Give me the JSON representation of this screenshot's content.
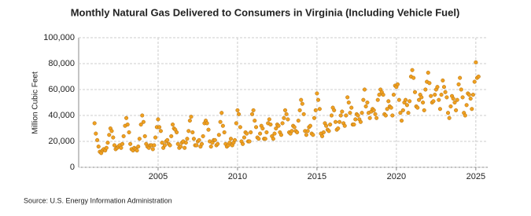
{
  "chart_data": {
    "type": "scatter",
    "title": "Monthly Natural Gas Delivered to Consumers in Virginia (Including Vehicle Fuel)",
    "y_label": "Million Cubic Feet",
    "source": "Source: U.S. Energy Information Administration",
    "color": "#f0a020",
    "grid": true,
    "xlim": [
      2000,
      2025.75
    ],
    "xticks": [
      2005,
      2010,
      2015,
      2020,
      2025
    ],
    "ylim": [
      0,
      100000
    ],
    "yticks": [
      0,
      {
        "value": 20000,
        "label": "20,000"
      },
      {
        "value": 40000,
        "label": "40,000"
      },
      {
        "value": 60000,
        "label": "60,000"
      },
      {
        "value": 80000,
        "label": "80,000"
      },
      {
        "value": 100000,
        "label": "100,000"
      }
    ],
    "x": [
      2001.0,
      2001.08,
      2001.17,
      2001.25,
      2001.33,
      2001.42,
      2001.5,
      2001.58,
      2001.67,
      2001.75,
      2001.83,
      2001.92,
      2002.0,
      2002.08,
      2002.17,
      2002.25,
      2002.33,
      2002.42,
      2002.5,
      2002.58,
      2002.67,
      2002.75,
      2002.83,
      2002.92,
      2003.0,
      2003.08,
      2003.17,
      2003.25,
      2003.33,
      2003.42,
      2003.5,
      2003.58,
      2003.67,
      2003.75,
      2003.83,
      2003.92,
      2004.0,
      2004.08,
      2004.17,
      2004.25,
      2004.33,
      2004.42,
      2004.5,
      2004.58,
      2004.67,
      2004.75,
      2004.83,
      2004.92,
      2005.0,
      2005.08,
      2005.17,
      2005.25,
      2005.33,
      2005.42,
      2005.5,
      2005.58,
      2005.67,
      2005.75,
      2005.83,
      2005.92,
      2006.0,
      2006.08,
      2006.17,
      2006.25,
      2006.33,
      2006.42,
      2006.5,
      2006.58,
      2006.67,
      2006.75,
      2006.83,
      2006.92,
      2007.0,
      2007.08,
      2007.17,
      2007.25,
      2007.33,
      2007.42,
      2007.5,
      2007.58,
      2007.67,
      2007.75,
      2007.83,
      2007.92,
      2008.0,
      2008.08,
      2008.17,
      2008.25,
      2008.33,
      2008.42,
      2008.5,
      2008.58,
      2008.67,
      2008.75,
      2008.83,
      2008.92,
      2009.0,
      2009.08,
      2009.17,
      2009.25,
      2009.33,
      2009.42,
      2009.5,
      2009.58,
      2009.67,
      2009.75,
      2009.83,
      2009.92,
      2010.0,
      2010.08,
      2010.17,
      2010.25,
      2010.33,
      2010.42,
      2010.5,
      2010.58,
      2010.67,
      2010.75,
      2010.83,
      2010.92,
      2011.0,
      2011.08,
      2011.17,
      2011.25,
      2011.33,
      2011.42,
      2011.5,
      2011.58,
      2011.67,
      2011.75,
      2011.83,
      2011.92,
      2012.0,
      2012.08,
      2012.17,
      2012.25,
      2012.33,
      2012.42,
      2012.5,
      2012.58,
      2012.67,
      2012.75,
      2012.83,
      2012.92,
      2013.0,
      2013.08,
      2013.17,
      2013.25,
      2013.33,
      2013.42,
      2013.5,
      2013.58,
      2013.67,
      2013.75,
      2013.83,
      2013.92,
      2014.0,
      2014.08,
      2014.17,
      2014.25,
      2014.33,
      2014.42,
      2014.5,
      2014.58,
      2014.67,
      2014.75,
      2014.83,
      2014.92,
      2015.0,
      2015.08,
      2015.17,
      2015.25,
      2015.33,
      2015.42,
      2015.5,
      2015.58,
      2015.67,
      2015.75,
      2015.83,
      2015.92,
      2016.0,
      2016.08,
      2016.17,
      2016.25,
      2016.33,
      2016.42,
      2016.5,
      2016.58,
      2016.67,
      2016.75,
      2016.83,
      2016.92,
      2017.0,
      2017.08,
      2017.17,
      2017.25,
      2017.33,
      2017.42,
      2017.5,
      2017.58,
      2017.67,
      2017.75,
      2017.83,
      2017.92,
      2018.0,
      2018.08,
      2018.17,
      2018.25,
      2018.33,
      2018.42,
      2018.5,
      2018.58,
      2018.67,
      2018.75,
      2018.83,
      2018.92,
      2019.0,
      2019.08,
      2019.17,
      2019.25,
      2019.33,
      2019.42,
      2019.5,
      2019.58,
      2019.67,
      2019.75,
      2019.83,
      2019.92,
      2020.0,
      2020.08,
      2020.17,
      2020.25,
      2020.33,
      2020.42,
      2020.5,
      2020.58,
      2020.67,
      2020.75,
      2020.83,
      2020.92,
      2021.0,
      2021.08,
      2021.17,
      2021.25,
      2021.33,
      2021.42,
      2021.5,
      2021.58,
      2021.67,
      2021.75,
      2021.83,
      2021.92,
      2022.0,
      2022.08,
      2022.17,
      2022.25,
      2022.33,
      2022.42,
      2022.5,
      2022.58,
      2022.67,
      2022.75,
      2022.83,
      2022.92,
      2023.0,
      2023.08,
      2023.17,
      2023.25,
      2023.33,
      2023.42,
      2023.5,
      2023.58,
      2023.67,
      2023.75,
      2023.83,
      2023.92,
      2024.0,
      2024.08,
      2024.17,
      2024.25,
      2024.33,
      2024.42,
      2024.5,
      2024.58,
      2024.67,
      2024.75,
      2024.83,
      2024.92,
      2025.0,
      2025.08,
      2025.17
    ],
    "values": [
      34000,
      26000,
      21000,
      16000,
      12000,
      11000,
      13000,
      14000,
      13000,
      15000,
      19000,
      25000,
      30000,
      28000,
      23000,
      17000,
      14000,
      15000,
      16000,
      17000,
      15000,
      18000,
      24000,
      32000,
      38000,
      33000,
      27000,
      18000,
      14000,
      13000,
      15000,
      14000,
      13000,
      16000,
      22000,
      33000,
      40000,
      35000,
      24000,
      18000,
      16000,
      15000,
      17000,
      17000,
      14000,
      17000,
      23000,
      31000,
      37000,
      31000,
      28000,
      19000,
      15000,
      17000,
      20000,
      21000,
      18000,
      17000,
      24000,
      33000,
      30000,
      29000,
      27000,
      18000,
      15000,
      16000,
      19000,
      20000,
      15000,
      19000,
      22000,
      28000,
      36000,
      39000,
      27000,
      22000,
      17000,
      17000,
      20000,
      21000,
      16000,
      18000,
      24000,
      34000,
      36000,
      34000,
      29000,
      20000,
      16000,
      19000,
      21000,
      21000,
      17000,
      18000,
      25000,
      35000,
      42000,
      32000,
      27000,
      18000,
      16000,
      17000,
      19000,
      22000,
      17000,
      19000,
      21000,
      34000,
      44000,
      41000,
      31000,
      20000,
      18000,
      23000,
      27000,
      26000,
      20000,
      20000,
      27000,
      41000,
      44000,
      36000,
      31000,
      23000,
      22000,
      26000,
      32000,
      30000,
      22000,
      22000,
      27000,
      34000,
      37000,
      33000,
      24000,
      22000,
      26000,
      30000,
      33000,
      32000,
      27000,
      25000,
      34000,
      38000,
      44000,
      41000,
      37000,
      27000,
      26000,
      28000,
      32000,
      31000,
      28000,
      27000,
      36000,
      44000,
      52000,
      49000,
      41000,
      28000,
      25000,
      28000,
      31000,
      32000,
      26000,
      25000,
      38000,
      44000,
      57000,
      52000,
      45000,
      26000,
      24000,
      27000,
      34000,
      32000,
      29000,
      28000,
      33000,
      40000,
      46000,
      44000,
      35000,
      29000,
      30000,
      35000,
      40000,
      43000,
      34000,
      32000,
      40000,
      54000,
      50000,
      42000,
      46000,
      33000,
      33000,
      37000,
      41000,
      40000,
      37000,
      35000,
      42000,
      52000,
      60000,
      47000,
      50000,
      42000,
      38000,
      43000,
      45000,
      44000,
      41000,
      38000,
      52000,
      56000,
      60000,
      58000,
      56000,
      41000,
      40000,
      45000,
      51000,
      47000,
      46000,
      40000,
      56000,
      63000,
      62000,
      64000,
      52000,
      42000,
      36000,
      44000,
      50000,
      52000,
      48000,
      42000,
      51000,
      70000,
      75000,
      69000,
      58000,
      47000,
      46000,
      52000,
      56000,
      54000,
      50000,
      44000,
      60000,
      66000,
      73000,
      65000,
      55000,
      50000,
      51000,
      56000,
      60000,
      62000,
      52000,
      45000,
      56000,
      67000,
      62000,
      58000,
      54000,
      42000,
      38000,
      47000,
      55000,
      53000,
      50000,
      44000,
      52000,
      64000,
      69000,
      60000,
      54000,
      42000,
      40000,
      48000,
      57000,
      56000,
      53000,
      45000,
      56000,
      66000,
      81000,
      69000,
      70000
    ]
  }
}
